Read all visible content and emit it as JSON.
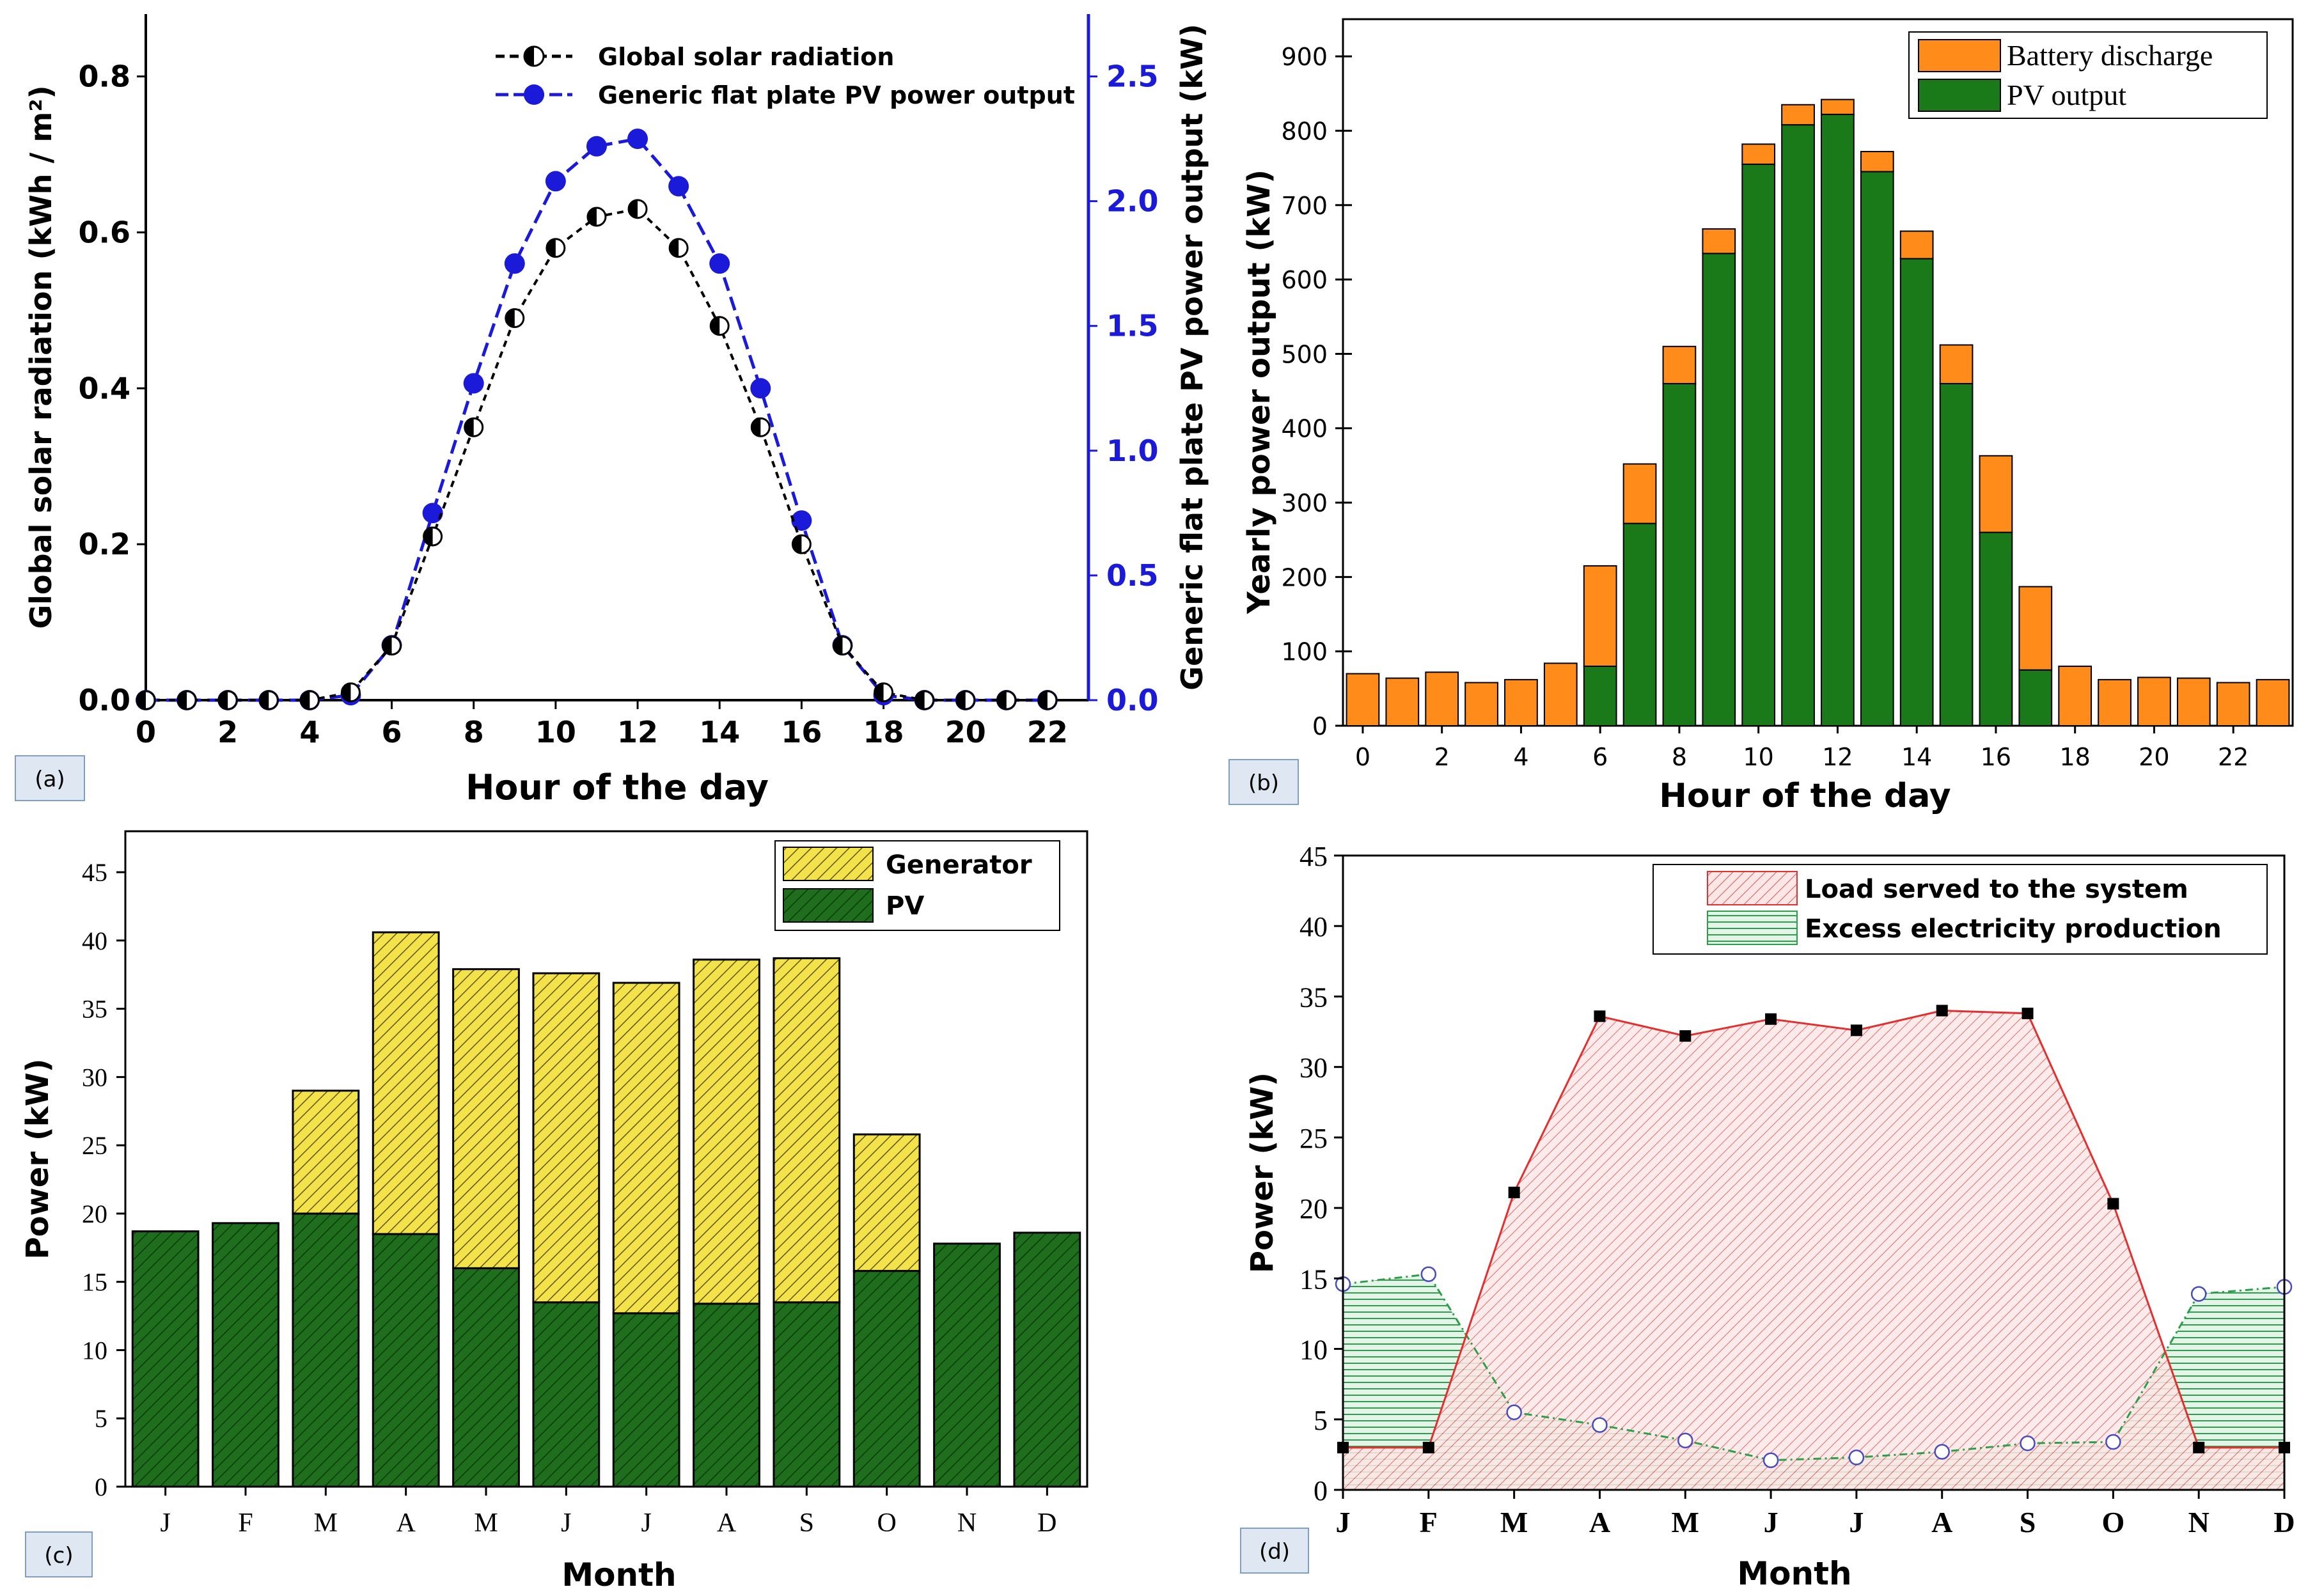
{
  "panels": [
    {
      "id": "a",
      "label": "(a)"
    },
    {
      "id": "b",
      "label": "(b)"
    },
    {
      "id": "c",
      "label": "(c)"
    },
    {
      "id": "d",
      "label": "(d)"
    }
  ],
  "chart_data": [
    {
      "id": "a",
      "type": "line",
      "title": "",
      "xlabel": "Hour of the day",
      "ylabel": "Global solar radiation (kWh / m²)",
      "y2label": "Generic flat plate PV power output (kW)",
      "xlim": [
        0,
        23
      ],
      "ylim": [
        0,
        0.88
      ],
      "y2lim": [
        0,
        2.75
      ],
      "xticks": [
        "0",
        "2",
        "4",
        "6",
        "8",
        "10",
        "12",
        "14",
        "16",
        "18",
        "20",
        "22"
      ],
      "yticks": [
        "0.0",
        "0.2",
        "0.4",
        "0.6",
        "0.8"
      ],
      "y2ticks": [
        "0.0",
        "0.5",
        "1.0",
        "1.5",
        "2.0",
        "2.5"
      ],
      "accent_color": "#1a1ad8",
      "legend": [
        "Global solar radiation",
        "Generic flat plate PV power output"
      ],
      "series": [
        {
          "name": "Global solar radiation",
          "axis": "left",
          "color": "#000000",
          "x": [
            0,
            1,
            2,
            3,
            4,
            5,
            6,
            7,
            8,
            9,
            10,
            11,
            12,
            13,
            14,
            15,
            16,
            17,
            18,
            19,
            20,
            21,
            22
          ],
          "values": [
            0,
            0,
            0,
            0,
            0,
            0.01,
            0.07,
            0.21,
            0.35,
            0.49,
            0.58,
            0.62,
            0.63,
            0.58,
            0.48,
            0.35,
            0.2,
            0.07,
            0.01,
            0,
            0,
            0,
            0
          ]
        },
        {
          "name": "Generic flat plate PV power output",
          "axis": "right",
          "color": "#1a1ad8",
          "x": [
            0,
            1,
            2,
            3,
            4,
            5,
            6,
            7,
            8,
            9,
            10,
            11,
            12,
            13,
            14,
            15,
            16,
            17,
            18,
            19,
            20,
            21,
            22
          ],
          "values": [
            0,
            0,
            0,
            0,
            0,
            0.02,
            0.22,
            0.75,
            1.27,
            1.75,
            2.08,
            2.22,
            2.25,
            2.06,
            1.75,
            1.25,
            0.72,
            0.22,
            0.02,
            0,
            0,
            0,
            0
          ]
        }
      ]
    },
    {
      "id": "b",
      "type": "bar",
      "stacked": true,
      "xlabel": "Hour of the day",
      "ylabel": "Yearly power output (kW)",
      "xlim": [
        -0.5,
        23.5
      ],
      "ylim": [
        0,
        950
      ],
      "xticks": [
        "0",
        "2",
        "4",
        "6",
        "8",
        "10",
        "12",
        "14",
        "16",
        "18",
        "20",
        "22"
      ],
      "yticks": [
        "0",
        "100",
        "200",
        "300",
        "400",
        "500",
        "600",
        "700",
        "800",
        "900"
      ],
      "legend": [
        "Battery discharge",
        "PV output"
      ],
      "categories": [
        "0",
        "1",
        "2",
        "3",
        "4",
        "5",
        "6",
        "7",
        "8",
        "9",
        "10",
        "11",
        "12",
        "13",
        "14",
        "15",
        "16",
        "17",
        "18",
        "19",
        "20",
        "21",
        "22",
        "23"
      ],
      "series": [
        {
          "name": "PV output",
          "color": "#1a7a1a",
          "values": [
            0,
            0,
            0,
            0,
            0,
            0,
            80,
            272,
            460,
            635,
            755,
            808,
            822,
            745,
            628,
            460,
            260,
            75,
            0,
            0,
            0,
            0,
            0,
            0
          ]
        },
        {
          "name": "Battery discharge",
          "color": "#ff8c1a",
          "values": [
            70,
            64,
            72,
            58,
            62,
            84,
            135,
            80,
            50,
            33,
            27,
            27,
            20,
            27,
            37,
            52,
            103,
            112,
            80,
            62,
            65,
            64,
            58,
            62
          ]
        }
      ]
    },
    {
      "id": "c",
      "type": "bar",
      "stacked": true,
      "xlabel": "Month",
      "ylabel": "Power (kW)",
      "ylim": [
        0,
        48
      ],
      "yticks": [
        "0",
        "5",
        "10",
        "15",
        "20",
        "25",
        "30",
        "35",
        "40",
        "45"
      ],
      "legend": [
        "Generator",
        "PV"
      ],
      "categories": [
        "J",
        "F",
        "M",
        "A",
        "M",
        "J",
        "J",
        "A",
        "S",
        "O",
        "N",
        "D"
      ],
      "series": [
        {
          "name": "PV",
          "color": "#1e6e1e",
          "values": [
            18.7,
            19.3,
            20.0,
            18.5,
            16.0,
            13.5,
            12.7,
            13.4,
            13.5,
            15.8,
            17.8,
            18.6
          ]
        },
        {
          "name": "Generator",
          "color": "#f2e14a",
          "values": [
            0,
            0,
            9.0,
            22.1,
            21.9,
            24.1,
            24.2,
            25.2,
            25.2,
            10.0,
            0,
            0
          ]
        }
      ]
    },
    {
      "id": "d",
      "type": "area",
      "xlabel": "Month",
      "ylabel": "Power (kW)",
      "ylim": [
        0,
        45
      ],
      "yticks": [
        "0",
        "5",
        "10",
        "15",
        "20",
        "25",
        "30",
        "35",
        "40",
        "45"
      ],
      "legend": [
        "Load served to the system",
        "Excess electricity production"
      ],
      "categories": [
        "J",
        "F",
        "M",
        "A",
        "M",
        "J",
        "J",
        "A",
        "S",
        "O",
        "N",
        "D"
      ],
      "series": [
        {
          "name": "Load served to the system",
          "color": "#e03030",
          "values": [
            3.0,
            3.0,
            21.1,
            33.6,
            32.2,
            33.4,
            32.6,
            34.0,
            33.8,
            20.3,
            3.0,
            3.0
          ]
        },
        {
          "name": "Excess electricity production",
          "color": "#2e9e4a",
          "values": [
            14.6,
            15.3,
            5.5,
            4.6,
            3.5,
            2.1,
            2.3,
            2.7,
            3.3,
            3.4,
            13.9,
            14.4
          ]
        }
      ]
    }
  ]
}
